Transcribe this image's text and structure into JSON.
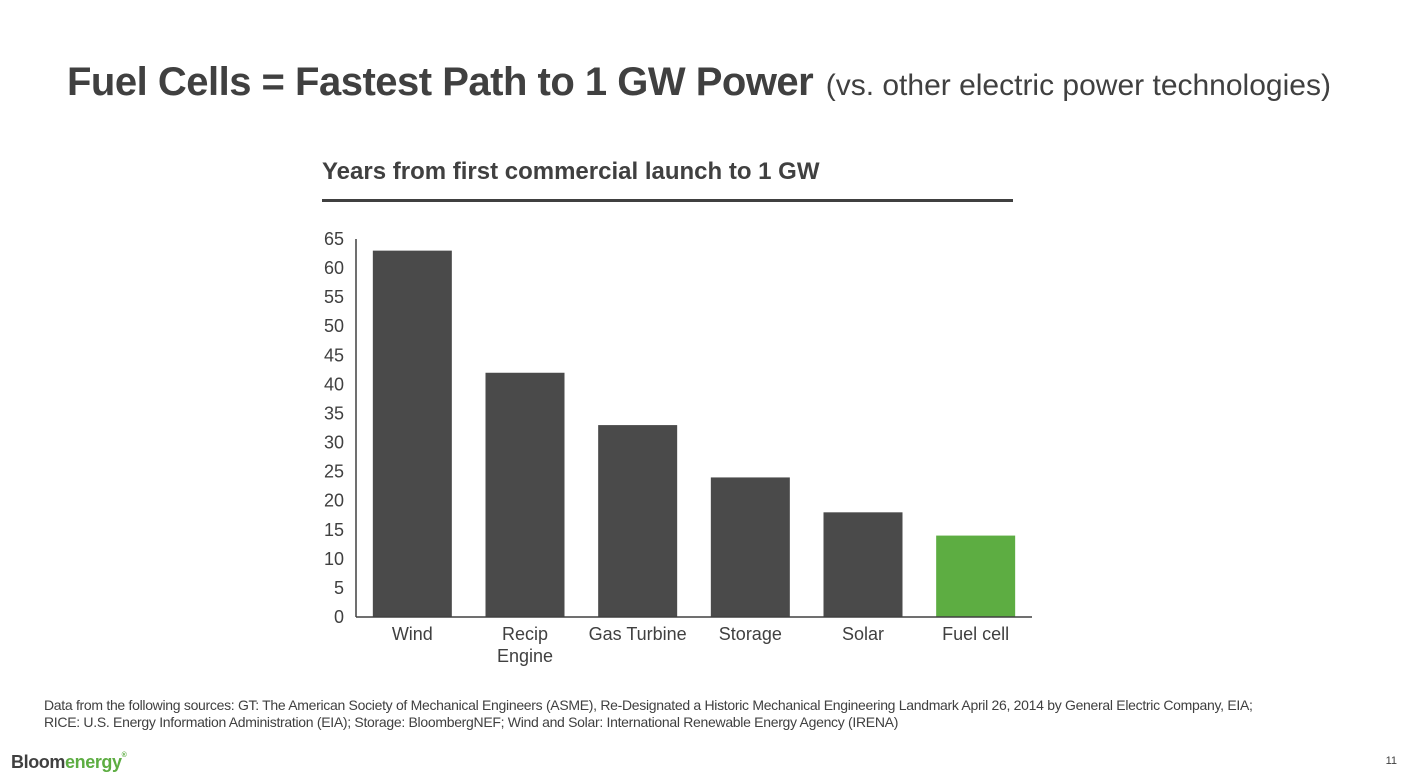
{
  "title": {
    "main": "Fuel Cells = Fastest Path to 1 GW Power",
    "subtitle": "(vs. other electric power technologies)"
  },
  "colors": {
    "bar": "#4a4a4a",
    "highlight": "#5dad42",
    "text": "#404040",
    "axis": "#404040"
  },
  "chart_data": {
    "type": "bar",
    "title": "Years from first commercial launch to 1 GW",
    "xlabel": "",
    "ylabel": "",
    "categories": [
      [
        "Wind"
      ],
      [
        "Recip",
        "Engine"
      ],
      [
        "Gas Turbine"
      ],
      [
        "Storage"
      ],
      [
        "Solar"
      ],
      [
        "Fuel cell"
      ]
    ],
    "values": [
      63,
      42,
      33,
      24,
      18,
      14
    ],
    "highlight_index": 5,
    "ylim": [
      0,
      65
    ],
    "yticks": [
      0,
      5,
      10,
      15,
      20,
      25,
      30,
      35,
      40,
      45,
      50,
      55,
      60,
      65
    ],
    "grid": false,
    "legend": "none"
  },
  "footnote": {
    "line1": "Data from the following sources: GT: The American Society of Mechanical Engineers (ASME), Re-Designated a Historic Mechanical Engineering Landmark April 26, 2014 by General Electric Company, EIA;",
    "line2": "RICE: U.S. Energy Information Administration (EIA);   Storage: BloombergNEF;   Wind and Solar: International Renewable Energy Agency (IRENA)"
  },
  "logo": {
    "part1": "Bloom",
    "part2": "energy",
    "mark": "®"
  },
  "page_number": "11"
}
